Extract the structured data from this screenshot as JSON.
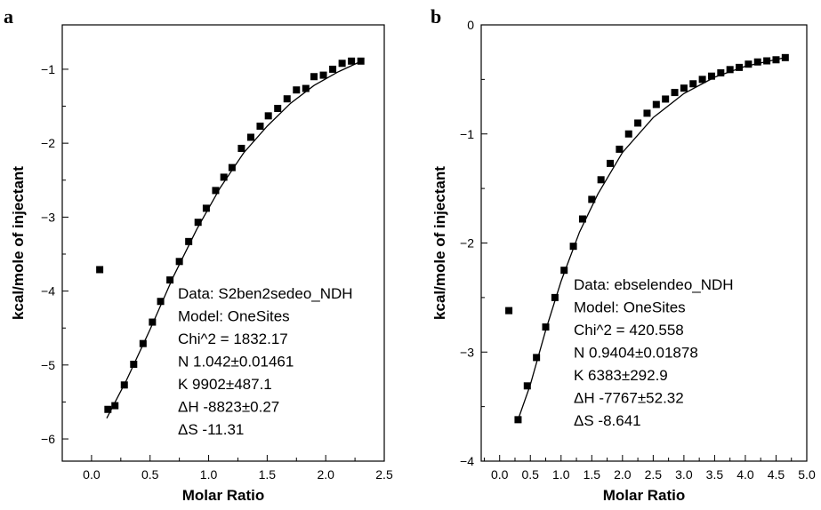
{
  "chart_data": [
    {
      "type": "scatter",
      "panel_label": "a",
      "xlabel": "Molar Ratio",
      "ylabel": "kcal/mole of injectant",
      "xlim": [
        -0.25,
        2.5
      ],
      "ylim": [
        -6.3,
        -0.4
      ],
      "xticks": [
        0.0,
        0.5,
        1.0,
        1.5,
        2.0,
        2.5
      ],
      "xtick_labels": [
        "0.0",
        "0.5",
        "1.0",
        "1.5",
        "2.0",
        "2.5"
      ],
      "yticks": [
        -1,
        -2,
        -3,
        -4,
        -5,
        -6
      ],
      "ytick_labels": [
        "−1",
        "−2",
        "−3",
        "−4",
        "−5",
        "−6"
      ],
      "grid": false,
      "series": [
        {
          "marker": "square",
          "x": [
            0.07,
            0.14,
            0.2,
            0.28,
            0.36,
            0.44,
            0.52,
            0.59,
            0.67,
            0.75,
            0.83,
            0.91,
            0.98,
            1.06,
            1.13,
            1.2,
            1.28,
            1.36,
            1.44,
            1.51,
            1.59,
            1.67,
            1.75,
            1.83,
            1.9,
            1.98,
            2.06,
            2.14,
            2.22,
            2.3
          ],
          "y": [
            -3.71,
            -5.6,
            -5.55,
            -5.27,
            -4.99,
            -4.71,
            -4.42,
            -4.14,
            -3.85,
            -3.6,
            -3.33,
            -3.07,
            -2.88,
            -2.64,
            -2.46,
            -2.33,
            -2.07,
            -1.92,
            -1.77,
            -1.63,
            -1.53,
            -1.4,
            -1.28,
            -1.26,
            -1.1,
            -1.08,
            -1.0,
            -0.92,
            -0.89,
            -0.89
          ]
        }
      ],
      "fit_curve": {
        "x": [
          0.13,
          0.3,
          0.5,
          0.7,
          0.9,
          1.1,
          1.3,
          1.5,
          1.7,
          1.9,
          2.1,
          2.32
        ],
        "y": [
          -5.72,
          -5.2,
          -4.52,
          -3.8,
          -3.16,
          -2.6,
          -2.13,
          -1.77,
          -1.46,
          -1.22,
          -1.04,
          -0.88
        ]
      },
      "annotation_lines": [
        "Data: S2ben2sedeo_NDH",
        "Model: OneSites",
        "Chi^2 = 1832.17",
        "N  1.042±0.01461",
        "K  9902±487.1",
        "ΔH -8823±0.27",
        "ΔS -11.31"
      ]
    },
    {
      "type": "scatter",
      "panel_label": "b",
      "xlabel": "Molar Ratio",
      "ylabel": "kcal/mole of injectant",
      "xlim": [
        -0.3,
        5.0
      ],
      "ylim": [
        -4.0,
        0.0
      ],
      "xticks": [
        0.0,
        0.5,
        1.0,
        1.5,
        2.0,
        2.5,
        3.0,
        3.5,
        4.0,
        4.5,
        5.0
      ],
      "xtick_labels": [
        "0.0",
        "0.5",
        "1.0",
        "1.5",
        "2.0",
        "2.5",
        "3.0",
        "3.5",
        "4.0",
        "4.5",
        "5.0"
      ],
      "yticks": [
        0,
        -1,
        -2,
        -3,
        -4
      ],
      "ytick_labels": [
        "0",
        "−1",
        "−2",
        "−3",
        "−4"
      ],
      "grid": false,
      "series": [
        {
          "marker": "square",
          "x": [
            0.15,
            0.3,
            0.45,
            0.6,
            0.75,
            0.9,
            1.05,
            1.2,
            1.35,
            1.5,
            1.65,
            1.8,
            1.95,
            2.1,
            2.25,
            2.4,
            2.55,
            2.7,
            2.85,
            3.0,
            3.15,
            3.3,
            3.45,
            3.6,
            3.75,
            3.9,
            4.05,
            4.2,
            4.35,
            4.5,
            4.65
          ],
          "y": [
            -2.62,
            -3.62,
            -3.31,
            -3.05,
            -2.77,
            -2.5,
            -2.25,
            -2.03,
            -1.78,
            -1.6,
            -1.42,
            -1.27,
            -1.14,
            -1.0,
            -0.9,
            -0.81,
            -0.73,
            -0.68,
            -0.62,
            -0.58,
            -0.54,
            -0.5,
            -0.47,
            -0.44,
            -0.41,
            -0.39,
            -0.36,
            -0.34,
            -0.33,
            -0.32,
            -0.3
          ]
        }
      ],
      "fit_curve": {
        "x": [
          0.3,
          0.5,
          0.75,
          1.0,
          1.3,
          1.6,
          2.0,
          2.5,
          3.0,
          3.5,
          4.0,
          4.65
        ],
        "y": [
          -3.62,
          -3.3,
          -2.8,
          -2.35,
          -1.9,
          -1.55,
          -1.17,
          -0.85,
          -0.63,
          -0.48,
          -0.38,
          -0.3
        ]
      },
      "annotation_lines": [
        "Data: ebselendeo_NDH",
        "Model: OneSites",
        "Chi^2 = 420.558",
        "N  0.9404±0.01878",
        "K  6383±292.9",
        "ΔH -7767±52.32",
        "ΔS -8.641"
      ]
    }
  ]
}
